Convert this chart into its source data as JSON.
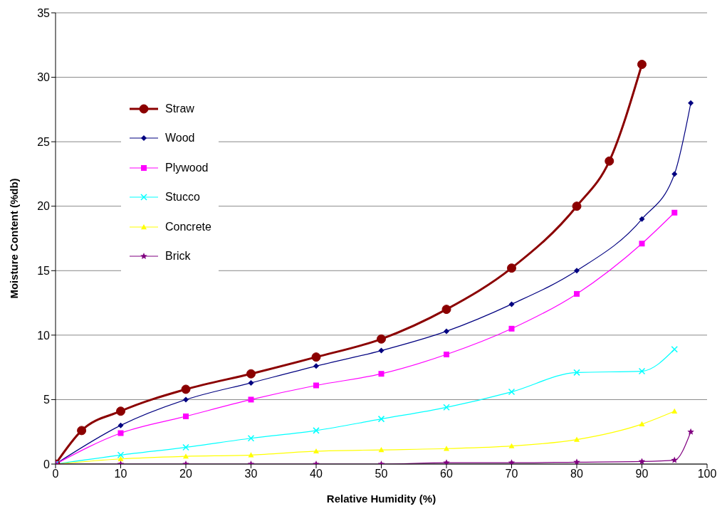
{
  "chart_data": {
    "type": "line",
    "xlabel": "Relative Humidity (%)",
    "ylabel": "Moisture Content (%db)",
    "xlim": [
      0,
      100
    ],
    "xticks": [
      0,
      10,
      20,
      30,
      40,
      50,
      60,
      70,
      80,
      90,
      100
    ],
    "ylim": [
      0,
      35
    ],
    "yticks": [
      0,
      5,
      10,
      15,
      20,
      25,
      30,
      35
    ],
    "grid": "y",
    "legend": "top left",
    "series": [
      {
        "name": "Straw",
        "color": "#8b0000",
        "marker": "circle",
        "x": [
          0,
          4,
          10,
          20,
          30,
          40,
          50,
          60,
          70,
          80,
          85,
          90
        ],
        "values": [
          0,
          2.6,
          4.1,
          5.8,
          7,
          8.3,
          9.7,
          12,
          15.2,
          20,
          23.5,
          31
        ]
      },
      {
        "name": "Wood",
        "color": "#000080",
        "marker": "diamond",
        "x": [
          0,
          10,
          20,
          30,
          40,
          50,
          60,
          70,
          80,
          90,
          95,
          97.5
        ],
        "values": [
          0,
          3,
          5,
          6.3,
          7.6,
          8.8,
          10.3,
          12.4,
          15,
          19,
          22.5,
          28
        ]
      },
      {
        "name": "Plywood",
        "color": "#ff00ff",
        "marker": "square",
        "x": [
          0,
          10,
          20,
          30,
          40,
          50,
          60,
          70,
          80,
          90,
          95
        ],
        "values": [
          0,
          2.4,
          3.7,
          5,
          6.1,
          7,
          8.5,
          10.5,
          13.2,
          17.1,
          19.5
        ]
      },
      {
        "name": "Stucco",
        "color": "#00ffff",
        "marker": "cross",
        "x": [
          0,
          10,
          20,
          30,
          40,
          50,
          60,
          70,
          80,
          90,
          95
        ],
        "values": [
          0,
          0.7,
          1.3,
          2,
          2.6,
          3.5,
          4.4,
          5.6,
          7.1,
          7.2,
          8.9
        ]
      },
      {
        "name": "Concrete",
        "color": "#ffff00",
        "marker": "triangle",
        "x": [
          0,
          10,
          20,
          30,
          40,
          50,
          60,
          70,
          80,
          90,
          95
        ],
        "values": [
          0,
          0.4,
          0.6,
          0.7,
          1,
          1.1,
          1.2,
          1.4,
          1.9,
          3.1,
          4.1
        ]
      },
      {
        "name": "Brick",
        "color": "#800080",
        "marker": "star",
        "x": [
          0,
          10,
          20,
          30,
          40,
          50,
          60,
          70,
          80,
          90,
          95,
          97.5
        ],
        "values": [
          0,
          0,
          0,
          0,
          0,
          0,
          0.1,
          0.1,
          0.15,
          0.2,
          0.3,
          2.5
        ]
      }
    ]
  }
}
